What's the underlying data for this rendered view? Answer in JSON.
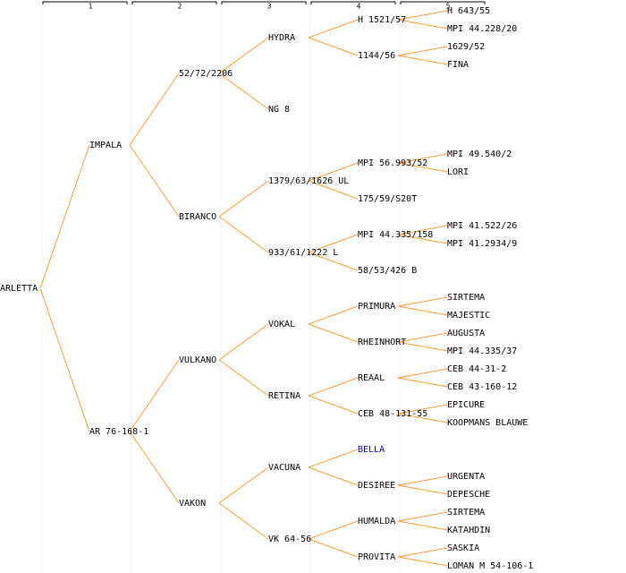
{
  "ruler": [
    "1",
    "2",
    "3",
    "4",
    "5"
  ],
  "tree": {
    "label": "ARLETTA",
    "children": [
      {
        "label": "IMPALA",
        "children": [
          {
            "label": "52/72/2206",
            "children": [
              {
                "label": "HYDRA",
                "children": [
                  {
                    "label": "H 1521/57",
                    "children": [
                      {
                        "label": "H 643/55"
                      },
                      {
                        "label": "MPI 44.228/20"
                      }
                    ]
                  },
                  {
                    "label": "1144/56",
                    "children": [
                      {
                        "label": "1629/52"
                      },
                      {
                        "label": "FINA"
                      }
                    ]
                  }
                ]
              },
              {
                "label": "NG 8"
              }
            ]
          },
          {
            "label": "BIRANCO",
            "children": [
              {
                "label": "1379/63/1626 UL",
                "children": [
                  {
                    "label": "MPI 56.993/52",
                    "children": [
                      {
                        "label": "MPI 49.540/2"
                      },
                      {
                        "label": "LORI"
                      }
                    ]
                  },
                  {
                    "label": "175/59/S20T"
                  }
                ]
              },
              {
                "label": "933/61/1222 L",
                "children": [
                  {
                    "label": "MPI 44.335/158",
                    "children": [
                      {
                        "label": "MPI 41.522/26"
                      },
                      {
                        "label": "MPI 41.2934/9"
                      }
                    ]
                  },
                  {
                    "label": "58/53/426 B"
                  }
                ]
              }
            ]
          }
        ]
      },
      {
        "label": "AR 76-168-1",
        "children": [
          {
            "label": "VULKANO",
            "children": [
              {
                "label": "VOKAL",
                "children": [
                  {
                    "label": "PRIMURA",
                    "children": [
                      {
                        "label": "SIRTEMA"
                      },
                      {
                        "label": "MAJESTIC"
                      }
                    ]
                  },
                  {
                    "label": "RHEINHORT",
                    "children": [
                      {
                        "label": "AUGUSTA"
                      },
                      {
                        "label": "MPI 44.335/37"
                      }
                    ]
                  }
                ]
              },
              {
                "label": "RETINA",
                "children": [
                  {
                    "label": "REAAL",
                    "children": [
                      {
                        "label": "CEB 44-31-2"
                      },
                      {
                        "label": "CEB 43-160-12"
                      }
                    ]
                  },
                  {
                    "label": "CEB 48-131-55",
                    "children": [
                      {
                        "label": "EPICURE"
                      },
                      {
                        "label": "KOOPMANS BLAUWE"
                      }
                    ]
                  }
                ]
              }
            ]
          },
          {
            "label": "VAKON",
            "children": [
              {
                "label": "VACUNA",
                "children": [
                  {
                    "label": "BELLA",
                    "color": "#0000cc"
                  },
                  {
                    "label": "DESIREE",
                    "children": [
                      {
                        "label": "URGENTA"
                      },
                      {
                        "label": "DEPESCHE"
                      }
                    ]
                  }
                ]
              },
              {
                "label": "VK 64-56",
                "children": [
                  {
                    "label": "HUMALDA",
                    "children": [
                      {
                        "label": "SIRTEMA"
                      },
                      {
                        "label": "KATAHDIN"
                      }
                    ]
                  },
                  {
                    "label": "PROVITA",
                    "children": [
                      {
                        "label": "SASKIA"
                      },
                      {
                        "label": "LOMAN M 54-106-1"
                      }
                    ]
                  }
                ]
              }
            ]
          }
        ]
      }
    ]
  }
}
